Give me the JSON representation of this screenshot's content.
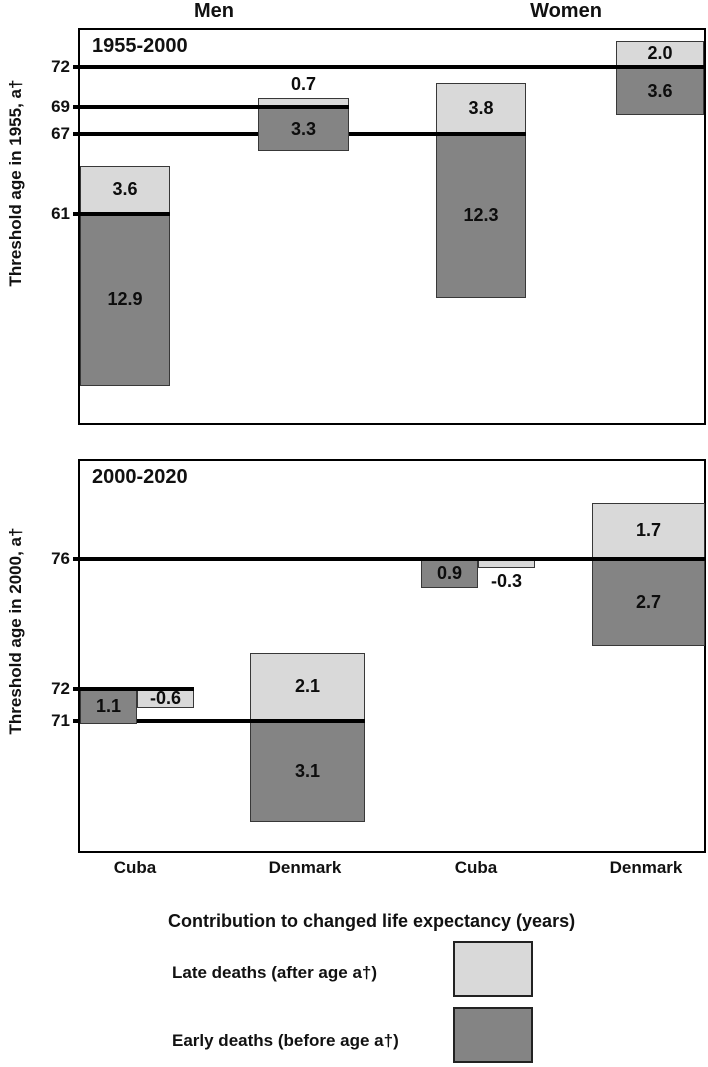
{
  "colors": {
    "late": "#d9d9d9",
    "early": "#848484",
    "line": "#000000"
  },
  "chart_data": {
    "type": "bar",
    "sex_headers": [
      "Men",
      "Women"
    ],
    "xlabels": [
      "Cuba",
      "Denmark",
      "Cuba",
      "Denmark"
    ],
    "panels": [
      {
        "period": "1955-2000",
        "ylabel": "Threshold age in 1955, a†",
        "ylim": [
          45.3,
          74.8
        ],
        "yticks": [
          72,
          69,
          67,
          61
        ],
        "groups": [
          {
            "sex": "Men",
            "country": "Cuba",
            "threshold": 61,
            "late": 3.6,
            "late_label": "3.6",
            "early": 12.9,
            "early_label": "12.9"
          },
          {
            "sex": "Men",
            "country": "Denmark",
            "threshold": 69,
            "late": 0.7,
            "late_label": "0.7",
            "early": 3.3,
            "early_label": "3.3"
          },
          {
            "sex": "Women",
            "country": "Cuba",
            "threshold": 67,
            "late": 3.8,
            "late_label": "3.8",
            "early": 12.3,
            "early_label": "12.3"
          },
          {
            "sex": "Women",
            "country": "Denmark",
            "threshold": 72,
            "late": 2.0,
            "late_label": "2.0",
            "early": 3.6,
            "early_label": "3.6"
          }
        ]
      },
      {
        "period": "2000-2020",
        "ylabel": "Threshold age in 2000, a†",
        "ylim": [
          67.0,
          79.0
        ],
        "yticks": [
          76,
          72,
          71
        ],
        "groups": [
          {
            "sex": "Men",
            "country": "Cuba",
            "threshold": 72,
            "late": -0.6,
            "late_label": "-0.6",
            "early": 1.1,
            "early_label": "1.1"
          },
          {
            "sex": "Men",
            "country": "Denmark",
            "threshold": 71,
            "late": 2.1,
            "late_label": "2.1",
            "early": 3.1,
            "early_label": "3.1"
          },
          {
            "sex": "Women",
            "country": "Cuba",
            "threshold": 76,
            "late": -0.3,
            "late_label": "-0.3",
            "early": 0.9,
            "early_label": "0.9"
          },
          {
            "sex": "Women",
            "country": "Denmark",
            "threshold": 76,
            "late": 1.7,
            "late_label": "1.7",
            "early": 2.7,
            "early_label": "2.7"
          }
        ]
      }
    ]
  },
  "legend": {
    "title": "Contribution to changed life expectancy (years)",
    "items": [
      {
        "key": "late",
        "label": "Late deaths (after age a†)"
      },
      {
        "key": "early",
        "label": "Early deaths (before age a†)"
      }
    ]
  }
}
